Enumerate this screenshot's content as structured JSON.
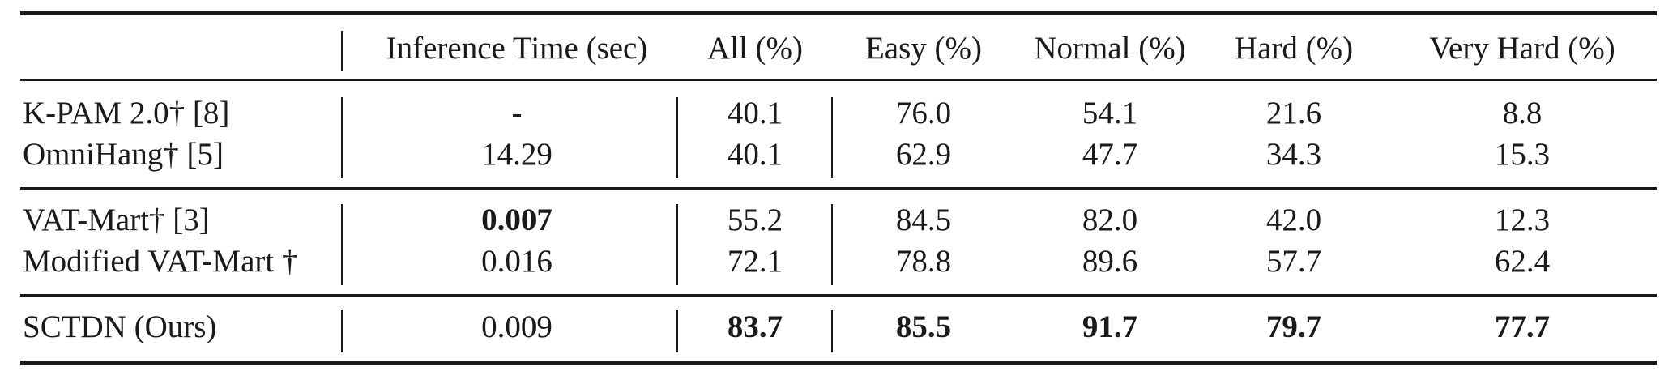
{
  "table": {
    "header": {
      "method": "",
      "inference_time": "Inference Time (sec)",
      "all": "All (%)",
      "easy": "Easy (%)",
      "normal": "Normal (%)",
      "hard": "Hard (%)",
      "very_hard": "Very Hard (%)"
    },
    "rows": [
      {
        "method": "K-PAM 2.0† [8]",
        "inference_time": "-",
        "all": "40.1",
        "easy": "76.0",
        "normal": "54.1",
        "hard": "21.6",
        "very_hard": "8.8"
      },
      {
        "method": "OmniHang† [5]",
        "inference_time": "14.29",
        "all": "40.1",
        "easy": "62.9",
        "normal": "47.7",
        "hard": "34.3",
        "very_hard": "15.3"
      },
      {
        "method": "VAT-Mart† [3]",
        "inference_time": "0.007",
        "all": "55.2",
        "easy": "84.5",
        "normal": "82.0",
        "hard": "42.0",
        "very_hard": "12.3"
      },
      {
        "method": "Modified VAT-Mart †",
        "inference_time": "0.016",
        "all": "72.1",
        "easy": "78.8",
        "normal": "89.6",
        "hard": "57.7",
        "very_hard": "62.4"
      },
      {
        "method": "SCTDN (Ours)",
        "inference_time": "0.009",
        "all": "83.7",
        "easy": "85.5",
        "normal": "91.7",
        "hard": "79.7",
        "very_hard": "77.7"
      }
    ]
  }
}
